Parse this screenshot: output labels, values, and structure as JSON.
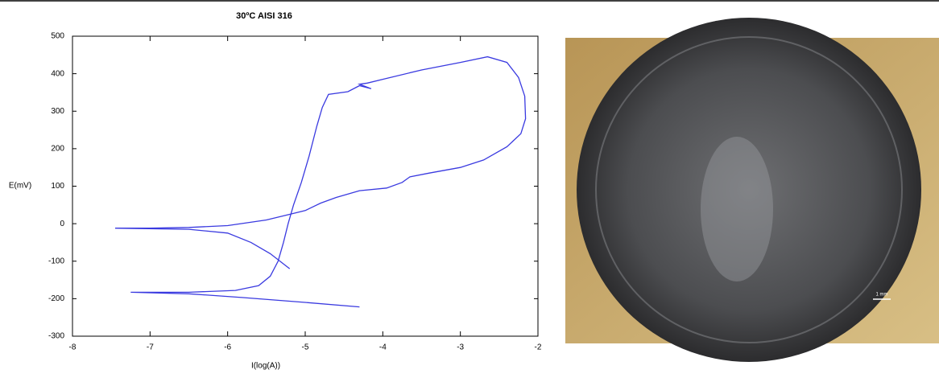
{
  "chart_data": {
    "type": "line",
    "title": "30ºC AISI 316",
    "x_label": "I(log(A))",
    "y_label": "E(mV)",
    "xlim": [
      -8,
      -2
    ],
    "ylim": [
      -300,
      500
    ],
    "xticks": [
      -8,
      -7,
      -6,
      -5,
      -4,
      -3,
      -2
    ],
    "yticks": [
      -300,
      -200,
      -100,
      0,
      100,
      200,
      300,
      400,
      500
    ],
    "series": [
      {
        "name": null,
        "color": "#3a3ae0",
        "x": [
          -4.3,
          -5.0,
          -5.8,
          -6.5,
          -7.25,
          -6.5,
          -5.9,
          -5.6,
          -5.45,
          -5.35,
          -5.28,
          -5.22,
          -5.15,
          -5.05,
          -4.95,
          -4.85,
          -4.78,
          -4.7,
          -4.45,
          -4.3,
          -4.15,
          -4.3,
          -4.2,
          -4.0,
          -3.5,
          -3.0,
          -2.65,
          -2.4,
          -2.25,
          -2.17,
          -2.16,
          -2.22,
          -2.4,
          -2.7,
          -3.0,
          -3.4,
          -3.65,
          -3.75,
          -3.95,
          -4.3,
          -4.6,
          -4.8,
          -5.0,
          -5.2,
          -5.5,
          -6.0,
          -6.5,
          -7.0,
          -7.45,
          -6.5,
          -6.0,
          -5.7,
          -5.45,
          -5.2
        ],
        "values": [
          -222,
          -210,
          -197,
          -187,
          -183,
          -183,
          -178,
          -165,
          -140,
          -100,
          -50,
          0,
          50,
          110,
          180,
          260,
          310,
          345,
          352,
          368,
          360,
          372,
          375,
          385,
          410,
          430,
          445,
          430,
          390,
          340,
          280,
          240,
          205,
          170,
          150,
          135,
          125,
          110,
          95,
          88,
          70,
          55,
          35,
          25,
          10,
          -5,
          -10,
          -12,
          -12,
          -15,
          -25,
          -50,
          -80,
          -120
        ]
      }
    ]
  },
  "photo": {
    "scale_label": "1 mm"
  }
}
